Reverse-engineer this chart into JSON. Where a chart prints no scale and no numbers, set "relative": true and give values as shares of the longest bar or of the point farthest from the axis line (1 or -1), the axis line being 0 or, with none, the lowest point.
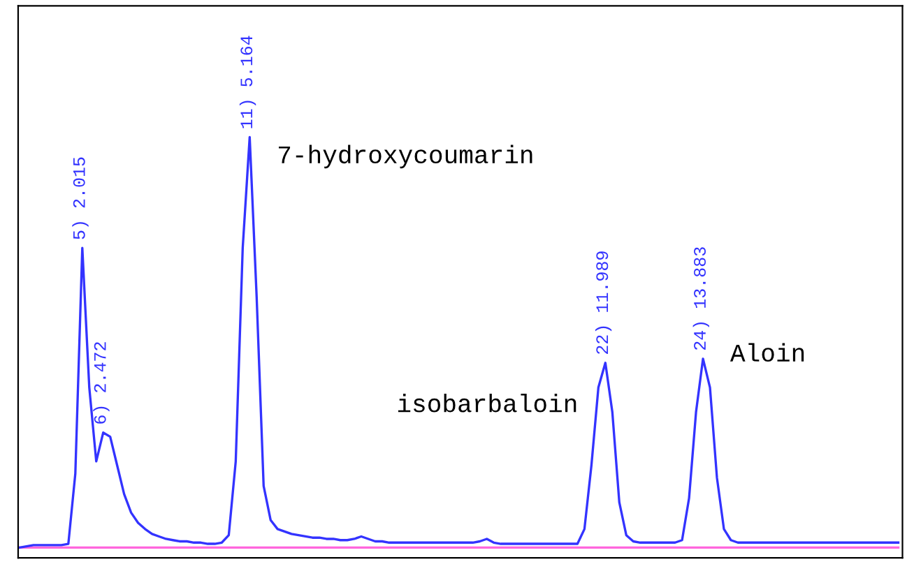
{
  "chart_data": {
    "type": "line",
    "relative": true,
    "legend": false,
    "categories": [
      null,
      null,
      null,
      null,
      null,
      null,
      null,
      null,
      null,
      null,
      null,
      null,
      null,
      null,
      null,
      null,
      null,
      null,
      null,
      null,
      null,
      null,
      null,
      null,
      null,
      null,
      null,
      null,
      null,
      null,
      null,
      null,
      null,
      null,
      null,
      null,
      null,
      null,
      null,
      null,
      null,
      null,
      null,
      null,
      null,
      null,
      null,
      null,
      null,
      null,
      null,
      null,
      null,
      null,
      null,
      null,
      null,
      null,
      null,
      null,
      null,
      null,
      null,
      null,
      null,
      null,
      null,
      null,
      null,
      null,
      null,
      null,
      null,
      null,
      null,
      null,
      null,
      null,
      null,
      null,
      null,
      null,
      null,
      null,
      null,
      null,
      null,
      null,
      null,
      null,
      null,
      null,
      null,
      null,
      null,
      null,
      null,
      null,
      null,
      null,
      null,
      null,
      null,
      null,
      null,
      null,
      null,
      null,
      null,
      null,
      null,
      null,
      null,
      null,
      null,
      null,
      null,
      null,
      null,
      null,
      null,
      null,
      null,
      null,
      null,
      null,
      null
    ],
    "series": [
      {
        "color": "#ff66dd",
        "values": [
          0,
          0,
          0,
          0,
          0,
          0,
          0,
          0,
          0,
          0,
          0,
          0,
          0,
          0,
          0,
          0,
          0,
          0,
          0,
          0,
          0,
          0,
          0,
          0,
          0,
          0,
          0,
          0,
          0,
          0,
          0,
          0,
          0,
          0,
          0,
          0,
          0,
          0,
          0,
          0,
          0,
          0,
          0,
          0,
          0,
          0,
          0,
          0,
          0,
          0,
          0,
          0,
          0,
          0,
          0,
          0,
          0,
          0,
          0,
          0,
          0,
          0,
          0,
          0,
          0,
          0,
          0,
          0,
          0,
          0,
          0,
          0,
          0,
          0,
          0,
          0,
          0,
          0,
          0,
          0,
          0,
          0,
          0,
          0,
          0,
          0,
          0,
          0,
          0,
          0,
          0,
          0,
          0,
          0,
          0,
          0,
          0,
          0,
          0,
          0,
          0,
          0,
          0,
          0,
          0,
          0,
          0,
          0,
          0,
          0,
          0,
          0,
          0,
          0,
          0,
          0,
          0,
          0,
          0,
          0,
          0,
          0,
          0,
          0,
          0,
          0,
          0
        ]
      },
      {
        "color": "#3333ff",
        "values": [
          0,
          0.003,
          0.006,
          0.006,
          0.006,
          0.006,
          0.006,
          0.009,
          0.18,
          0.73,
          0.39,
          0.21,
          0.28,
          0.27,
          0.2,
          0.13,
          0.085,
          0.06,
          0.045,
          0.033,
          0.027,
          0.021,
          0.018,
          0.015,
          0.015,
          0.012,
          0.012,
          0.009,
          0.009,
          0.012,
          0.03,
          0.21,
          0.73,
          1,
          0.61,
          0.15,
          0.067,
          0.045,
          0.039,
          0.033,
          0.03,
          0.027,
          0.024,
          0.024,
          0.021,
          0.021,
          0.018,
          0.018,
          0.021,
          0.027,
          0.021,
          0.015,
          0.015,
          0.012,
          0.012,
          0.012,
          0.012,
          0.012,
          0.012,
          0.012,
          0.012,
          0.012,
          0.012,
          0.012,
          0.012,
          0.012,
          0.015,
          0.021,
          0.012,
          0.009,
          0.009,
          0.009,
          0.009,
          0.009,
          0.009,
          0.009,
          0.009,
          0.009,
          0.009,
          0.009,
          0.009,
          0.045,
          0.2,
          0.39,
          0.45,
          0.33,
          0.11,
          0.03,
          0.015,
          0.012,
          0.012,
          0.012,
          0.012,
          0.012,
          0.012,
          0.018,
          0.12,
          0.33,
          0.46,
          0.39,
          0.17,
          0.045,
          0.018,
          0.012,
          0.012,
          0.012,
          0.012,
          0.012,
          0.012,
          0.012,
          0.012,
          0.012,
          0.012,
          0.012,
          0.012,
          0.012,
          0.012,
          0.012,
          0.012,
          0.012,
          0.012,
          0.012,
          0.012,
          0.012,
          0.012,
          0.012,
          0.012
        ]
      }
    ],
    "annotations": [
      "5) 2.015",
      "6) 2.472",
      "11) 5.164",
      "22) 11.989",
      "24) 13.883",
      "7-hydroxycoumarin",
      "isobarbaloin",
      "Aloin"
    ]
  }
}
